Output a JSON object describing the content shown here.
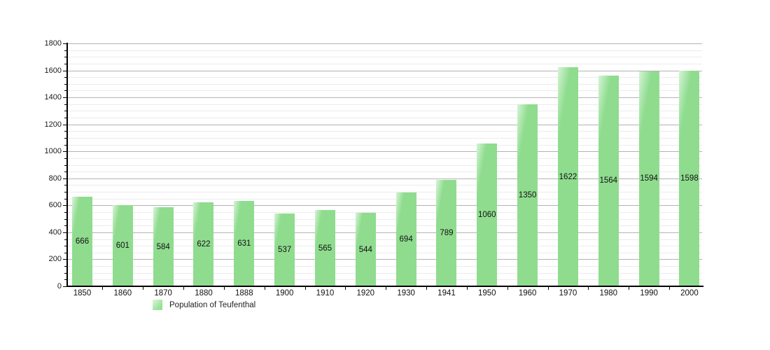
{
  "chart_data": {
    "type": "bar",
    "title": "",
    "xlabel": "",
    "ylabel": "",
    "categories": [
      "1850",
      "1860",
      "1870",
      "1880",
      "1888",
      "1900",
      "1910",
      "1920",
      "1930",
      "1941",
      "1950",
      "1960",
      "1970",
      "1980",
      "1990",
      "2000"
    ],
    "values": [
      666,
      601,
      584,
      622,
      631,
      537,
      565,
      544,
      694,
      789,
      1060,
      1350,
      1622,
      1564,
      1594,
      1598
    ],
    "series": [
      {
        "name": "Population of Teufenthal",
        "values": [
          666,
          601,
          584,
          622,
          631,
          537,
          565,
          544,
          694,
          789,
          1060,
          1350,
          1622,
          1564,
          1594,
          1598
        ]
      }
    ],
    "ylim": [
      0,
      1800
    ],
    "y_tick_labels": [
      "0",
      "200",
      "400",
      "600",
      "800",
      "1000",
      "1200",
      "1400",
      "1600",
      "1800"
    ],
    "y_major_step": 200,
    "y_minor_step": 50,
    "grid": true,
    "bar_value_labels_shown": true,
    "legend_position": "bottom-left"
  },
  "legend": {
    "label": "Population of Teufenthal"
  },
  "colors": {
    "bar": "#8fdc8f",
    "bar_highlight": "#d6f4d6",
    "grid_minor": "#ececec",
    "grid_major": "#b3b3b3",
    "axis": "#000000",
    "text": "#111111",
    "background": "#ffffff"
  }
}
